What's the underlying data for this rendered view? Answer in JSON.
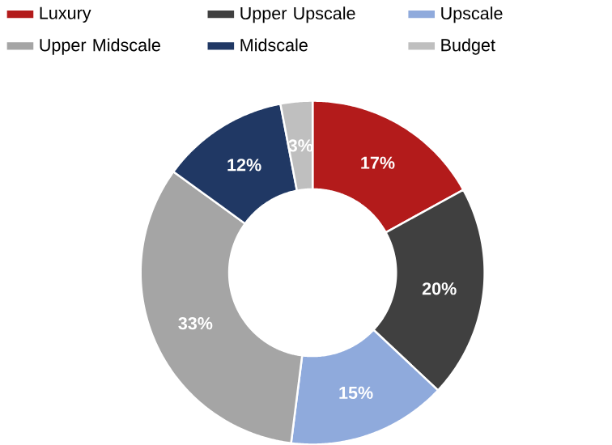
{
  "chart_data": {
    "type": "donut",
    "categories": [
      "Luxury",
      "Upper Upscale",
      "Upscale",
      "Upper Midscale",
      "Midscale",
      "Budget"
    ],
    "values": [
      17,
      20,
      15,
      33,
      12,
      3
    ],
    "colors": [
      "#b31b1b",
      "#404040",
      "#8faadc",
      "#a5a5a5",
      "#203864",
      "#bfbfbf"
    ],
    "value_labels": [
      "17%",
      "20%",
      "15%",
      "33%",
      "12%",
      "3%"
    ],
    "legend": "top"
  }
}
